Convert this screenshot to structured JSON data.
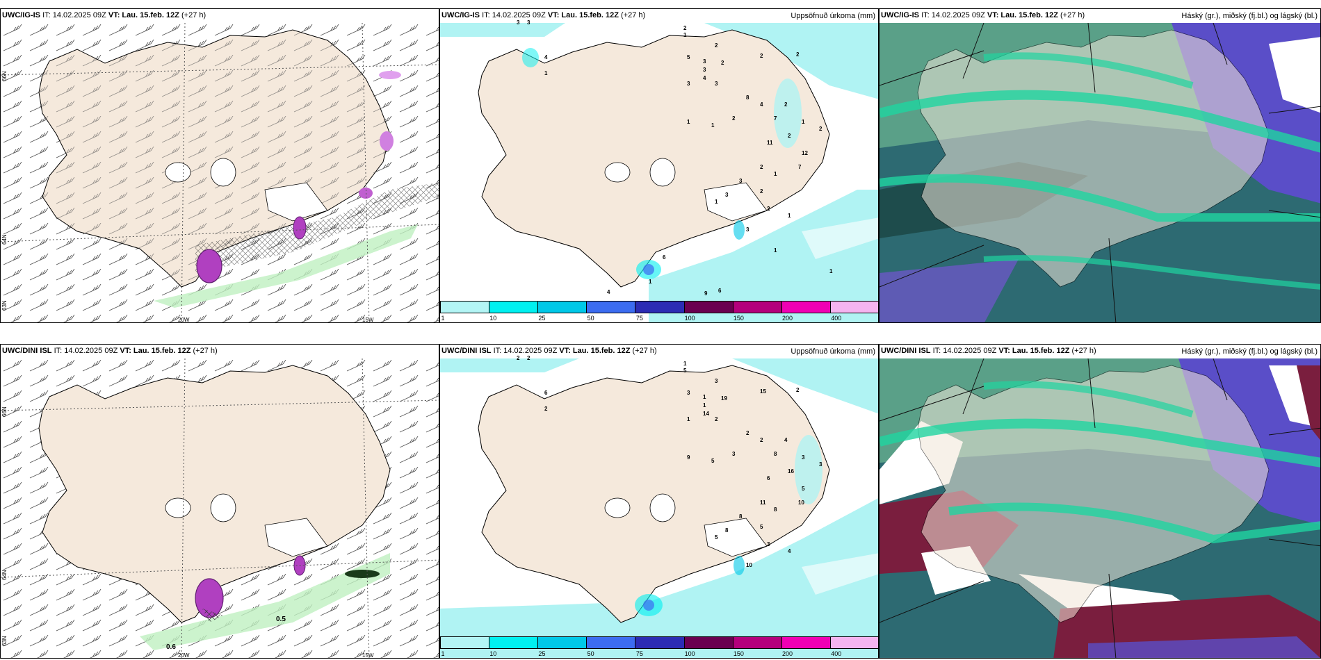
{
  "rows": [
    {
      "wind": {
        "model": "UWC/IG-IS",
        "it": "IT: 14.02.2025 09Z",
        "vt_label": "VT:",
        "vt": "Lau. 15.feb. 12Z",
        "lead": "(+27 h)"
      },
      "precip": {
        "model": "UWC/IG-IS",
        "it": "IT: 14.02.2025 09Z",
        "vt_label": "VT:",
        "vt": "Lau. 15.feb. 12Z",
        "lead": "(+27 h)",
        "right": "Uppsöfnuð úrkoma (mm)"
      },
      "cloud": {
        "model": "UWC/IG-IS",
        "it": "IT: 14.02.2025 09Z",
        "vt_label": "VT:",
        "vt": "Lau. 15.feb. 12Z",
        "lead": "(+27 h)",
        "right": "Háský (gr.), miðský (fj.bl.) og lágský (bl.)"
      }
    },
    {
      "wind": {
        "model": "UWC/DINI ISL",
        "it": "IT: 14.02.2025 09Z",
        "vt_label": "VT:",
        "vt": "Lau. 15.feb. 12Z",
        "lead": "(+27 h)"
      },
      "precip": {
        "model": "UWC/DINI ISL",
        "it": "IT: 14.02.2025 09Z",
        "vt_label": "VT:",
        "vt": "Lau. 15.feb. 12Z",
        "lead": "(+27 h)",
        "right": "Uppsöfnuð úrkoma (mm)"
      },
      "cloud": {
        "model": "UWC/DINI ISL",
        "it": "IT: 14.02.2025 09Z",
        "vt_label": "VT:",
        "vt": "Lau. 15.feb. 12Z",
        "lead": "(+27 h)",
        "right": "Háský (gr.), miðský (fj.bl.) og lágský (bl.)"
      }
    }
  ],
  "grid_labels": {
    "lat66": "66N",
    "lat64": "64N",
    "lat63": "63N",
    "lon20": "20W",
    "lon15": "15W"
  },
  "precip_colorbar": {
    "levels": [
      "1",
      "10",
      "25",
      "50",
      "75",
      "100",
      "150",
      "200",
      "400"
    ],
    "colors": [
      "#b3f5f5",
      "#00f0f0",
      "#00c8e8",
      "#3c6cf0",
      "#2c2cb4",
      "#6a0050",
      "#b4007c",
      "#f000b4",
      "#f5b4f0"
    ]
  },
  "wind_labels_bottom": {
    "a": "0.6",
    "b": "0.5"
  },
  "precip_values_top": [
    "3",
    "3",
    "2",
    "1",
    "4",
    "1",
    "2",
    "5",
    "3",
    "3",
    "4",
    "2",
    "2",
    "2",
    "3",
    "3",
    "8",
    "4",
    "2",
    "7",
    "1",
    "1",
    "2",
    "1",
    "2",
    "2",
    "11",
    "12",
    "7",
    "2",
    "3",
    "1",
    "3",
    "2",
    "1",
    "2",
    "1",
    "3",
    "1",
    "6",
    "1",
    "4",
    "9",
    "6",
    "1"
  ],
  "precip_values_bottom": [
    "2",
    "2",
    "1",
    "5",
    "6",
    "2",
    "3",
    "3",
    "1",
    "1",
    "14",
    "19",
    "15",
    "2",
    "1",
    "2",
    "2",
    "2",
    "4",
    "8",
    "9",
    "5",
    "3",
    "3",
    "3",
    "16",
    "6",
    "5",
    "10",
    "11",
    "8",
    "8",
    "8",
    "5",
    "5",
    "3",
    "4",
    "10"
  ],
  "colors": {
    "land": "#f5e9dc",
    "sea_cyan": "#b0f3f3",
    "cloud_dark": "#2d6a72",
    "cloud_green": "#1fd4a0",
    "cloud_purple": "#5a4ec8",
    "cloud_maroon": "#7a1e3e",
    "precip_magenta": "#b040c0"
  }
}
